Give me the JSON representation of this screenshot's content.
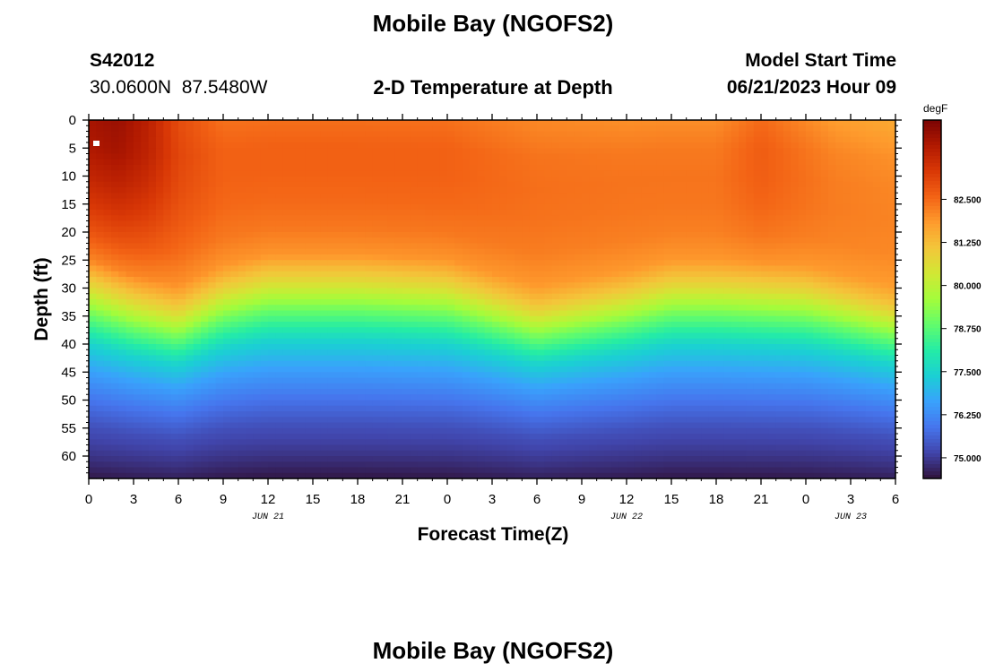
{
  "page": {
    "title": "Mobile Bay (NGOFS2)",
    "footer_title": "Mobile Bay (NGOFS2)",
    "station_id": "S42012",
    "coordinates": "30.0600N  87.5480W",
    "subtitle": "2-D Temperature at Depth",
    "model_start_label": "Model Start Time",
    "model_start_value": "06/21/2023 Hour 09"
  },
  "chart_data": {
    "type": "heatmap",
    "title": "2-D Temperature at Depth",
    "xlabel": "Forecast Time(Z)",
    "ylabel": "Depth (ft)",
    "x_tick_labels": [
      "0",
      "3",
      "6",
      "9",
      "12",
      "15",
      "18",
      "21",
      "0",
      "3",
      "6",
      "9",
      "12",
      "15",
      "18",
      "21",
      "0",
      "3",
      "6"
    ],
    "x_range_hours": [
      0,
      54
    ],
    "x_date_labels": [
      {
        "hour": 12,
        "label": "JUN 21"
      },
      {
        "hour": 36,
        "label": "JUN 22"
      },
      {
        "hour": 51,
        "label": "JUN 23"
      }
    ],
    "y_ticks": [
      0,
      5,
      10,
      15,
      20,
      25,
      30,
      35,
      40,
      45,
      50,
      55,
      60
    ],
    "ylim": [
      0,
      64
    ],
    "y_inverted": true,
    "colorbar": {
      "unit": "degF",
      "range": [
        74.4,
        84.8
      ],
      "tick_values": [
        75.0,
        76.25,
        77.5,
        78.75,
        80.0,
        81.25,
        82.5
      ],
      "tick_labels": [
        "75.000",
        "76.250",
        "77.500",
        "78.750",
        "80.000",
        "81.250",
        "82.500"
      ]
    },
    "colormap": [
      "#30123b",
      "#4145ab",
      "#4675ed",
      "#39a2fc",
      "#1bcfd4",
      "#24eca6",
      "#61fc6c",
      "#a4fc3b",
      "#d1e834",
      "#f3c63a",
      "#fe9b2d",
      "#f36315",
      "#d93806",
      "#b11901",
      "#7a0403"
    ],
    "depth_profile": [
      {
        "depth": 0,
        "temp": 82.4
      },
      {
        "depth": 5,
        "temp": 82.6
      },
      {
        "depth": 10,
        "temp": 82.6
      },
      {
        "depth": 15,
        "temp": 82.5
      },
      {
        "depth": 20,
        "temp": 82.3
      },
      {
        "depth": 25,
        "temp": 81.9
      },
      {
        "depth": 30,
        "temp": 80.6
      },
      {
        "depth": 35,
        "temp": 78.9
      },
      {
        "depth": 40,
        "temp": 77.5
      },
      {
        "depth": 45,
        "temp": 76.6
      },
      {
        "depth": 50,
        "temp": 75.9
      },
      {
        "depth": 55,
        "temp": 75.3
      },
      {
        "depth": 60,
        "temp": 74.9
      },
      {
        "depth": 64,
        "temp": 74.5
      }
    ],
    "thermocline_depth": [
      {
        "hour": 0,
        "depth": 28
      },
      {
        "hour": 3,
        "depth": 31
      },
      {
        "hour": 6,
        "depth": 33
      },
      {
        "hour": 9,
        "depth": 29
      },
      {
        "hour": 12,
        "depth": 27
      },
      {
        "hour": 18,
        "depth": 27
      },
      {
        "hour": 24,
        "depth": 28
      },
      {
        "hour": 30,
        "depth": 33
      },
      {
        "hour": 36,
        "depth": 30
      },
      {
        "hour": 39,
        "depth": 28
      },
      {
        "hour": 42,
        "depth": 28
      },
      {
        "hour": 48,
        "depth": 29
      },
      {
        "hour": 54,
        "depth": 33
      }
    ],
    "surface_anomaly": [
      {
        "hour": 0,
        "delta": 1.8
      },
      {
        "hour": 2,
        "delta": 2.0
      },
      {
        "hour": 4,
        "delta": 1.5
      },
      {
        "hour": 6,
        "delta": 0.6
      },
      {
        "hour": 9,
        "delta": 0.0
      },
      {
        "hour": 15,
        "delta": 0.0
      },
      {
        "hour": 24,
        "delta": 0.0
      },
      {
        "hour": 30,
        "delta": -0.3
      },
      {
        "hour": 36,
        "delta": -0.4
      },
      {
        "hour": 42,
        "delta": -0.4
      },
      {
        "hour": 45,
        "delta": 0.1
      },
      {
        "hour": 50,
        "delta": -0.6
      },
      {
        "hour": 54,
        "delta": -0.8
      }
    ]
  }
}
